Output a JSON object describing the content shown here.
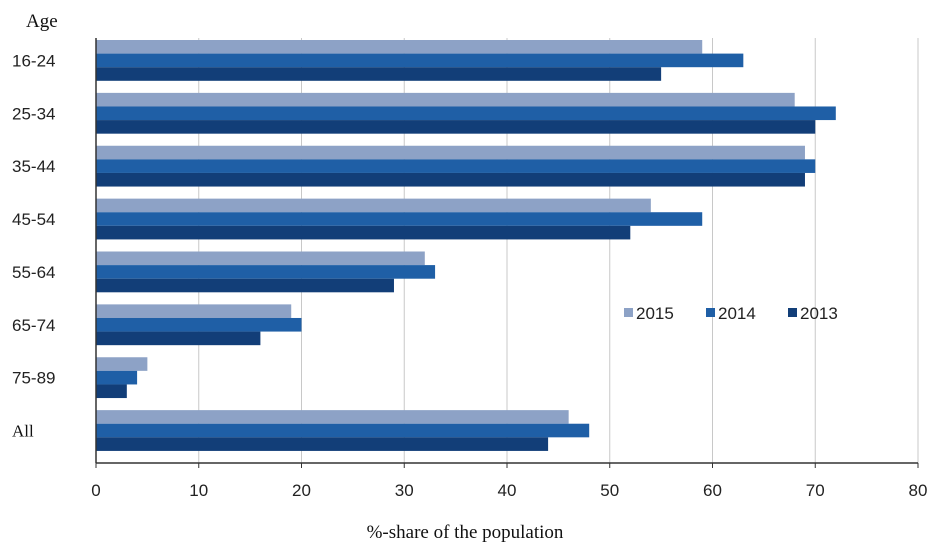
{
  "chart_data": {
    "type": "bar",
    "orientation": "horizontal",
    "title": "",
    "ylabel": "Age",
    "xlabel": "%-share of the population",
    "categories": [
      "16-24",
      "25-34",
      "35-44",
      "45-54",
      "55-64",
      "65-74",
      "75-89",
      "All"
    ],
    "series": [
      {
        "name": "2015",
        "color": "#8da2c6",
        "values": [
          59,
          68,
          69,
          54,
          32,
          19,
          5,
          46
        ]
      },
      {
        "name": "2014",
        "color": "#1f5fa6",
        "values": [
          63,
          72,
          70,
          59,
          33,
          20,
          4,
          48
        ]
      },
      {
        "name": "2013",
        "color": "#123e78",
        "values": [
          55,
          70,
          69,
          52,
          29,
          16,
          3,
          44
        ]
      }
    ],
    "xlim": [
      0,
      80
    ],
    "xticks": [
      0,
      10,
      20,
      30,
      40,
      50,
      60,
      70,
      80
    ],
    "grid": true,
    "legend_position": "right"
  }
}
